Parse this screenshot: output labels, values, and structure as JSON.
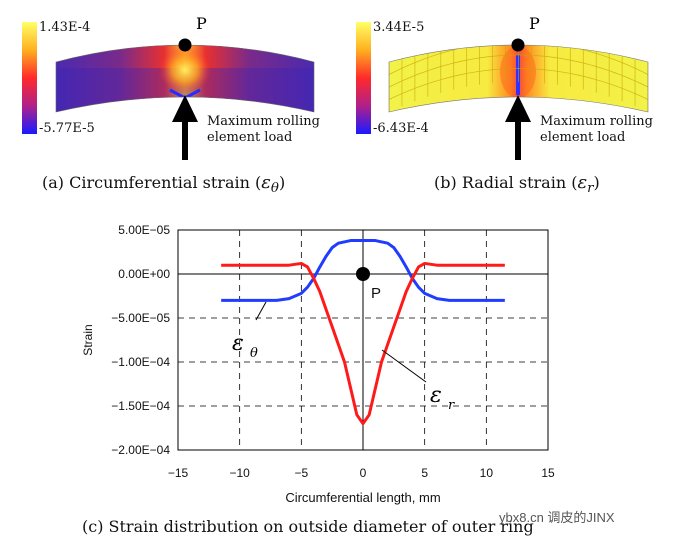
{
  "panels": {
    "a": {
      "colorbar_max": "1.43E-4",
      "colorbar_min": "-5.77E-5",
      "point_label": "P",
      "load_label_line1": "Maximum rolling",
      "load_label_line2": "element load",
      "caption_prefix": "(a) Circumferential strain (",
      "caption_symbol": "ε",
      "caption_sub": "θ",
      "caption_suffix": ")"
    },
    "b": {
      "colorbar_max": "3.44E-5",
      "colorbar_min": "-6.43E-4",
      "point_label": "P",
      "load_label_line1": "Maximum rolling",
      "load_label_line2": "element load",
      "caption_prefix": "(b) Radial strain (",
      "caption_symbol": "ε",
      "caption_sub": "r",
      "caption_suffix": ")"
    }
  },
  "chart_data": {
    "type": "line",
    "title": "",
    "xlabel": "Circumferential length, mm",
    "ylabel": "Strain",
    "xlim": [
      -15,
      15
    ],
    "ylim": [
      -0.0002,
      5e-05
    ],
    "xticks": [
      -15,
      -10,
      -5,
      0,
      5,
      10,
      15
    ],
    "xtick_labels": [
      "−15",
      "−10",
      "−5",
      "0",
      "5",
      "10",
      "15"
    ],
    "yticks": [
      5e-05,
      0,
      -5e-05,
      -0.0001,
      -0.00015,
      -0.0002
    ],
    "ytick_labels": [
      "5.00E−05",
      "0.00E+00",
      "−5.00E−05",
      "−1.00E−04",
      "−1.50E−04",
      "−2.00E−04"
    ],
    "grid": true,
    "point": {
      "label": "P",
      "x": 0,
      "y": 0
    },
    "series": [
      {
        "name": "εθ",
        "label_symbol": "ε",
        "label_sub": "θ",
        "color": "#1f3cff",
        "x": [
          -11.5,
          -9,
          -7,
          -6,
          -5,
          -4.5,
          -4,
          -3.5,
          -3,
          -2.5,
          -2,
          -1,
          0,
          1,
          2,
          2.5,
          3,
          3.5,
          4,
          4.5,
          5,
          6,
          7,
          9,
          11.5
        ],
        "y": [
          -3e-05,
          -3e-05,
          -3e-05,
          -2.8e-05,
          -2.2e-05,
          -1.5e-05,
          -5e-06,
          8e-06,
          2e-05,
          3e-05,
          3.5e-05,
          3.8e-05,
          3.8e-05,
          3.8e-05,
          3.5e-05,
          3e-05,
          2e-05,
          8e-06,
          -5e-06,
          -1.5e-05,
          -2.2e-05,
          -2.8e-05,
          -3e-05,
          -3e-05,
          -3e-05
        ]
      },
      {
        "name": "εr",
        "label_symbol": "ε",
        "label_sub": "r",
        "color": "#ff1a1a",
        "x": [
          -11.5,
          -8,
          -6,
          -5,
          -4.5,
          -4,
          -3.5,
          -3,
          -2.5,
          -2,
          -1.5,
          -1,
          -0.5,
          0,
          0.5,
          1,
          1.5,
          2,
          2.5,
          3,
          3.5,
          4,
          4.5,
          5,
          6,
          8,
          11.5
        ],
        "y": [
          1e-05,
          1e-05,
          1e-05,
          1.2e-05,
          8e-06,
          -5e-06,
          -2e-05,
          -4e-05,
          -6e-05,
          -8e-05,
          -0.0001,
          -0.00013,
          -0.00016,
          -0.00017,
          -0.00016,
          -0.00013,
          -0.0001,
          -8e-05,
          -6e-05,
          -4e-05,
          -2e-05,
          -5e-06,
          8e-06,
          1.2e-05,
          1e-05,
          1e-05,
          1e-05
        ]
      }
    ]
  },
  "caption_c": "(c) Strain distribution on outside diameter of outer ring",
  "watermark": "ybx8.cn 调皮的JINX"
}
